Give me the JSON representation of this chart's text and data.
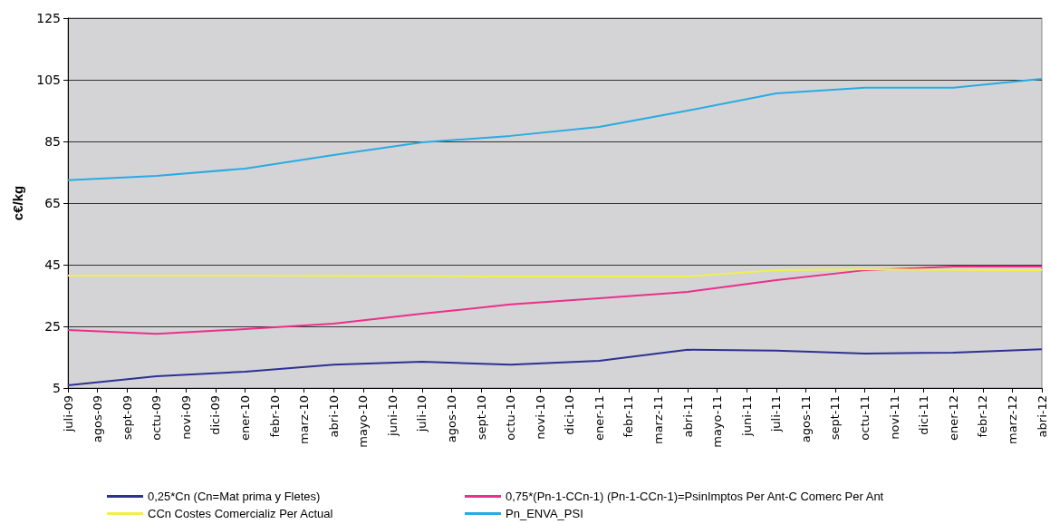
{
  "chart_data": {
    "type": "line",
    "ylabel": "c€/kg",
    "categories": [
      "juli-09",
      "agos-09",
      "sept-09",
      "octu-09",
      "novi-09",
      "dici-09",
      "ener-10",
      "febr-10",
      "marz-10",
      "abri-10",
      "mayo-10",
      "juni-10",
      "juli-10",
      "agos-10",
      "sept-10",
      "octu-10",
      "novi-10",
      "dici-10",
      "ener-11",
      "febr-11",
      "marz-11",
      "abri-11",
      "mayo-11",
      "juni-11",
      "juli-11",
      "agos-11",
      "sept-11",
      "octu-11",
      "novi-11",
      "dici-11",
      "ener-12",
      "febr-12",
      "marz-12",
      "abri-12"
    ],
    "series": [
      {
        "name": "0,25*Cn (Cn=Mat prima y Fletes)",
        "color": "#2e3192",
        "values": [
          5.9,
          null,
          null,
          8.8,
          null,
          null,
          10.3,
          null,
          null,
          12.6,
          null,
          null,
          13.5,
          null,
          null,
          12.6,
          null,
          null,
          13.8,
          null,
          null,
          17.4,
          null,
          null,
          17.1,
          null,
          null,
          16.2,
          null,
          null,
          16.5,
          null,
          null,
          17.6
        ]
      },
      {
        "name": "0,75*(Pn-1-CCn-1) (Pn-1-CCn-1)=PsinImptos Per Ant-C Comerc Per Ant",
        "color": "#ec2f8c",
        "values": [
          23.8,
          null,
          null,
          22.6,
          null,
          null,
          24.1,
          null,
          null,
          25.9,
          null,
          null,
          29.1,
          null,
          null,
          32.1,
          null,
          null,
          34.1,
          null,
          null,
          36.2,
          null,
          null,
          40,
          null,
          null,
          43.2,
          null,
          null,
          44.4,
          null,
          null,
          44.4
        ]
      },
      {
        "name": "CCn Costes Comercializ Per Actual",
        "color": "#f0f04a",
        "values": [
          41.5,
          null,
          null,
          41.5,
          null,
          null,
          41.5,
          null,
          null,
          41.4,
          null,
          null,
          41.3,
          null,
          null,
          41.2,
          null,
          null,
          41.2,
          null,
          null,
          41.2,
          null,
          null,
          43.2,
          null,
          null,
          43.5,
          null,
          null,
          43.3,
          null,
          null,
          43.2
        ]
      },
      {
        "name": "Pn_ENVA_PSI",
        "color": "#29abe2",
        "values": [
          72.4,
          null,
          null,
          73.8,
          null,
          null,
          76.2,
          null,
          null,
          80.6,
          null,
          null,
          84.7,
          null,
          null,
          86.8,
          null,
          null,
          89.7,
          null,
          null,
          95,
          null,
          null,
          100.6,
          null,
          null,
          102.4,
          null,
          null,
          102.4,
          null,
          null,
          105.3
        ]
      }
    ],
    "ylim": [
      5,
      125
    ],
    "yticks": [
      5,
      25,
      45,
      65,
      85,
      105,
      125
    ],
    "grid": "y",
    "legend": "bottom",
    "marker": "none",
    "line_style": "solid"
  }
}
